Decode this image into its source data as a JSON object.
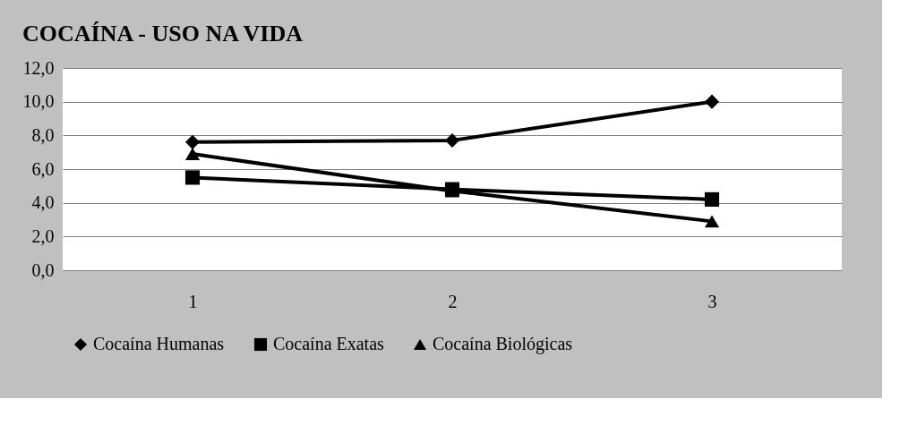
{
  "chart_data": {
    "type": "line",
    "title": "COCAÍNA - USO NA VIDA",
    "categories": [
      "1",
      "2",
      "3"
    ],
    "series": [
      {
        "name": "Cocaína Humanas",
        "color": "#000000",
        "marker": "diamond",
        "values": [
          7.6,
          7.7,
          10.0
        ]
      },
      {
        "name": "Cocaína Exatas",
        "color": "#000000",
        "marker": "square",
        "values": [
          5.5,
          4.8,
          4.2
        ]
      },
      {
        "name": "Cocaína Biológicas",
        "color": "#000000",
        "marker": "triangle",
        "values": [
          6.9,
          4.7,
          2.9
        ]
      }
    ],
    "ylim": [
      0,
      12
    ],
    "yticks": [
      {
        "value": 0,
        "label": "0,0"
      },
      {
        "value": 2,
        "label": "2,0"
      },
      {
        "value": 4,
        "label": "4,0"
      },
      {
        "value": 6,
        "label": "6,0"
      },
      {
        "value": 8,
        "label": "8,0"
      },
      {
        "value": 10,
        "label": "10,0"
      },
      {
        "value": 12,
        "label": "12,0"
      }
    ],
    "grid": "y",
    "legend": "bottom",
    "line_style": "solid"
  }
}
